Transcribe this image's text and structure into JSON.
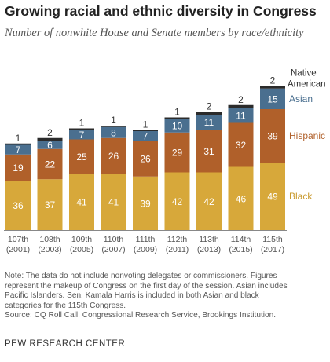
{
  "chart_data": {
    "type": "bar",
    "stacked": true,
    "title": "Growing racial and ethnic diversity in Congress",
    "subtitle": "Number of nonwhite House and Senate members by race/ethnicity",
    "categories": [
      [
        "107th",
        "(2001)"
      ],
      [
        "108th",
        "(2003)"
      ],
      [
        "109th",
        "(2005)"
      ],
      [
        "110th",
        "(2007)"
      ],
      [
        "111th",
        "(2009)"
      ],
      [
        "112th",
        "(2011)"
      ],
      [
        "113th",
        "(2013)"
      ],
      [
        "114th",
        "(2015)"
      ],
      [
        "115th",
        "(2017)"
      ]
    ],
    "series": [
      {
        "name": "Black",
        "color": "#d7a83a",
        "label_color": "#ffffff",
        "legend_color": "#c99a2e",
        "values": [
          36,
          37,
          41,
          41,
          39,
          42,
          42,
          46,
          49
        ]
      },
      {
        "name": "Hispanic",
        "color": "#b0602a",
        "label_color": "#ffffff",
        "legend_color": "#b0602a",
        "values": [
          19,
          22,
          25,
          26,
          26,
          29,
          31,
          32,
          39
        ]
      },
      {
        "name": "Asian",
        "color": "#4a6f8f",
        "label_color": "#ffffff",
        "legend_color": "#4a6f8f",
        "values": [
          7,
          6,
          7,
          8,
          7,
          10,
          11,
          11,
          15
        ]
      },
      {
        "name": "Native American",
        "color": "#2b2b2b",
        "label_color": "#333333",
        "legend_color": "#333333",
        "values": [
          1,
          2,
          1,
          1,
          1,
          1,
          2,
          2,
          2
        ]
      }
    ],
    "legend": {
      "placement": "right",
      "native_lines": [
        "Native",
        "American"
      ]
    },
    "grid": false,
    "ylim": [
      0,
      110
    ]
  },
  "notes": [
    "Note: The data do not include nonvoting delegates or commissioners. Figures",
    "represent the makeup of Congress on the first day of the session. Asian includes",
    "Pacific Islanders. Sen. Kamala Harris is included in both Asian and black",
    "categories for the 115th Congress.",
    "Source: CQ Roll Call, Congressional Research Service, Brookings Institution."
  ],
  "brand": "PEW RESEARCH CENTER"
}
